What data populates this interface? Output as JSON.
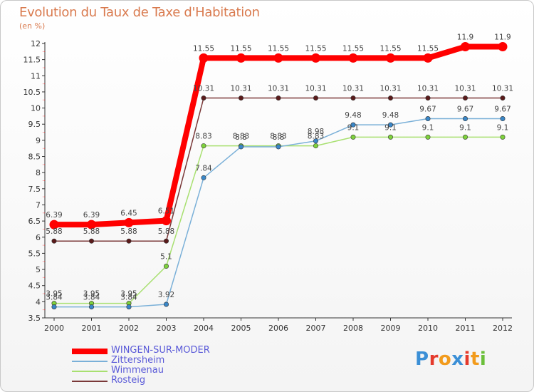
{
  "title": "Evolution du Taux de Taxe d'Habitation",
  "unit": "(en %)",
  "logo_text": "Proxiti",
  "logo_colors": [
    "#3b8fd6",
    "#e53a2c",
    "#f29b1c",
    "#3b8fd6",
    "#e53a2c",
    "#f29b1c",
    "#6bbf3a"
  ],
  "chart_data": {
    "type": "line",
    "title": "Evolution du Taux de Taxe d'Habitation",
    "ylabel": "(en %)",
    "xlabel": "",
    "x": [
      "2000",
      "2001",
      "2002",
      "2003",
      "2004",
      "2005",
      "2006",
      "2007",
      "2008",
      "2009",
      "2010",
      "2011",
      "2012"
    ],
    "ylim": [
      3.5,
      12
    ],
    "yticks": [
      "3.5",
      "4",
      "4.5",
      "5",
      "5.5",
      "6",
      "6.5",
      "7",
      "7.5",
      "8",
      "8.5",
      "9",
      "9.5",
      "10",
      "10.5",
      "11",
      "11.5",
      "12"
    ],
    "grid": false,
    "legend_position": "bottom-left",
    "series": [
      {
        "name": "WINGEN-SUR-MODER",
        "color": "#ff0000",
        "marker_color": "#ff0000",
        "values": [
          6.39,
          6.39,
          6.45,
          6.51,
          11.55,
          11.55,
          11.55,
          11.55,
          11.55,
          11.55,
          11.55,
          11.9,
          11.9
        ],
        "labels": [
          "6.39",
          "6.39",
          "6.45",
          "6.51",
          "11.55",
          "11.55",
          "11.55",
          "11.55",
          "11.55",
          "11.55",
          "11.55",
          "11.9",
          "11.9"
        ]
      },
      {
        "name": "Zittersheim",
        "color": "#7ab0d8",
        "marker_color": "#3a87c8",
        "values": [
          3.84,
          3.84,
          3.84,
          3.92,
          7.84,
          8.8,
          8.8,
          8.98,
          9.48,
          9.48,
          9.67,
          9.67,
          9.67
        ],
        "labels": [
          "3.84",
          "3.84",
          "3.84",
          "3.92",
          "7.84",
          "8.8",
          "8.8",
          "8.98",
          "9.48",
          "9.48",
          "9.67",
          "9.67",
          "9.67"
        ]
      },
      {
        "name": "Wimmenau",
        "color": "#a8e070",
        "marker_color": "#7ed23c",
        "values": [
          3.95,
          3.95,
          3.95,
          5.1,
          8.83,
          8.83,
          8.83,
          8.83,
          9.1,
          9.1,
          9.1,
          9.1,
          9.1
        ],
        "labels": [
          "3.95",
          "3.95",
          "3.95",
          "5.1",
          "8.83",
          "8.83",
          "8.83",
          "8.83",
          "9.1",
          "9.1",
          "9.1",
          "9.1",
          "9.1"
        ]
      },
      {
        "name": "Rosteig",
        "color": "#7a3838",
        "marker_color": "#5a1a1a",
        "values": [
          5.88,
          5.88,
          5.88,
          5.88,
          10.31,
          10.31,
          10.31,
          10.31,
          10.31,
          10.31,
          10.31,
          10.31,
          10.31
        ],
        "labels": [
          "5.88",
          "5.88",
          "5.88",
          "5.88",
          "10.31",
          "10.31",
          "10.31",
          "10.31",
          "10.31",
          "10.31",
          "10.31",
          "10.31",
          "10.31"
        ]
      }
    ]
  }
}
